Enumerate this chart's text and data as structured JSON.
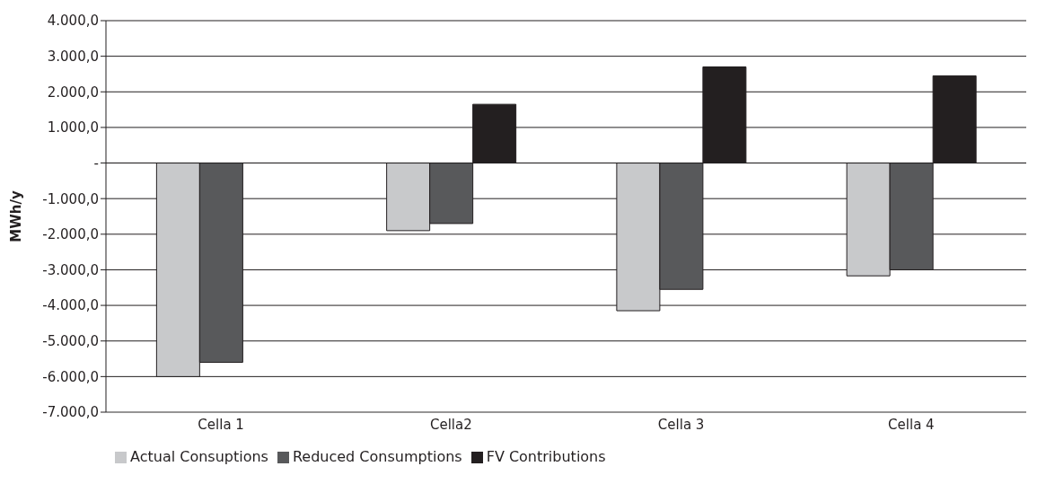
{
  "chart_data": {
    "type": "bar",
    "ylabel": "MWh/y",
    "categories": [
      "Cella 1",
      "Cella2",
      "Cella 3",
      "Cella 4"
    ],
    "series": [
      {
        "name": "Actual Consuptions",
        "color": "#c8c9cb",
        "values": [
          -6000,
          -1900,
          -4150,
          -3170
        ]
      },
      {
        "name": "Reduced Consumptions",
        "color": "#58595b",
        "values": [
          -5600,
          -1700,
          -3550,
          -3000
        ]
      },
      {
        "name": "FV Contributions",
        "color": "#231f20",
        "values": [
          null,
          1650,
          2700,
          2450
        ]
      }
    ],
    "ylim": [
      -7000,
      4000
    ],
    "yticks": [
      {
        "value": -7000,
        "label": "-7.000,0"
      },
      {
        "value": -6000,
        "label": "-6.000,0"
      },
      {
        "value": -5000,
        "label": "-5.000,0"
      },
      {
        "value": -4000,
        "label": "-4.000,0"
      },
      {
        "value": -3000,
        "label": "-3.000,0"
      },
      {
        "value": -2000,
        "label": "-2.000,0"
      },
      {
        "value": -1000,
        "label": "-1.000,0"
      },
      {
        "value": 0,
        "label": "-"
      },
      {
        "value": 1000,
        "label": "1.000,0"
      },
      {
        "value": 2000,
        "label": "2.000,0"
      },
      {
        "value": 3000,
        "label": "3.000,0"
      },
      {
        "value": 4000,
        "label": "4.000,0"
      }
    ],
    "grid": "y",
    "legend": "bottom"
  }
}
